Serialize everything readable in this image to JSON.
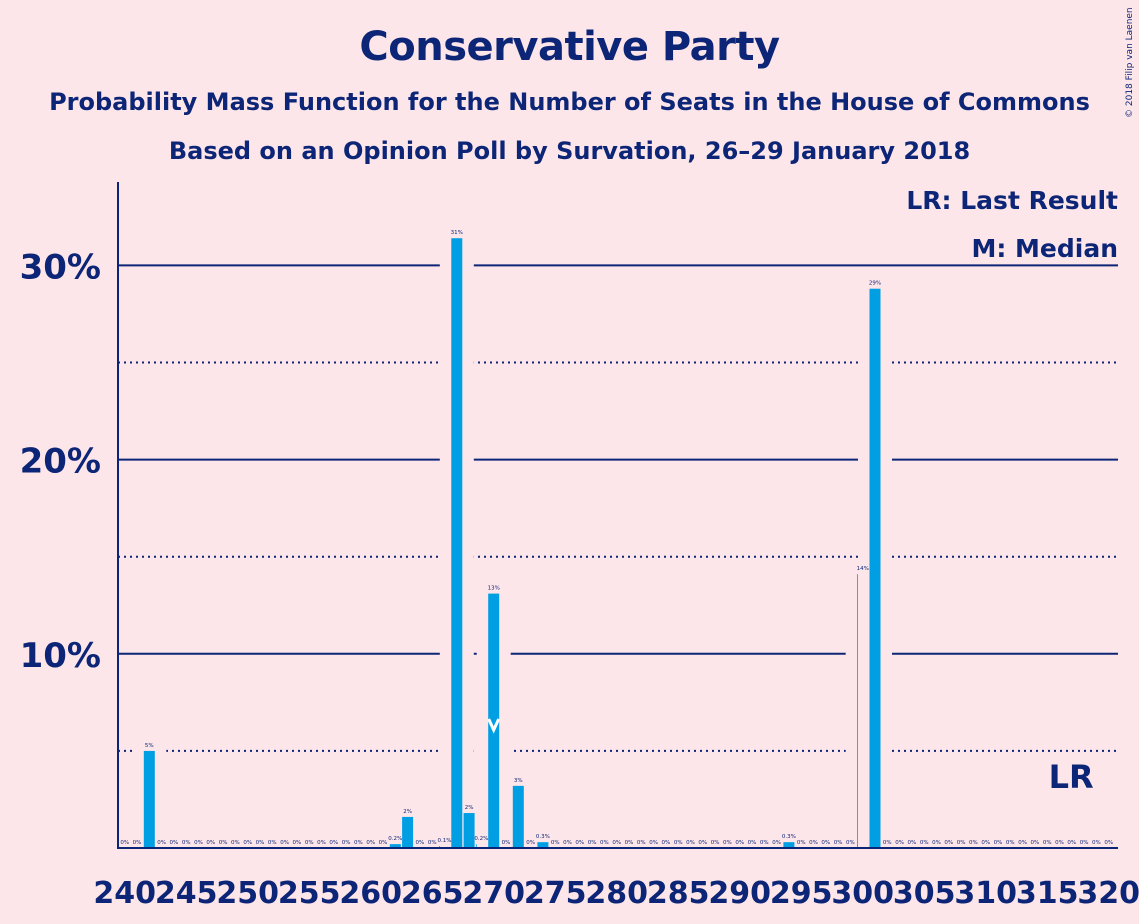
{
  "chart_data": {
    "type": "bar",
    "title": "Conservative Party",
    "subtitle": "Probability Mass Function for the Number of Seats in the House of Commons",
    "subtitle2": "Based on an Opinion Poll by Survation, 26–29 January 2018",
    "copyright": "© 2018 Filip van Laenen",
    "legend": {
      "last_result": "LR: Last Result",
      "median": "M: Median",
      "placement": "top-right"
    },
    "lr_label": "LR",
    "lr_seat": 318,
    "median_seat": 270,
    "color_bar": "#009fe3",
    "color_axis": "#0c2577",
    "ylim": [
      0,
      34
    ],
    "y_ticks": [
      10,
      20,
      30
    ],
    "y_tick_labels": [
      "10%",
      "20%",
      "30%"
    ],
    "y_dotted": [
      5,
      15,
      25
    ],
    "x_tick_values": [
      240,
      245,
      250,
      255,
      260,
      265,
      270,
      275,
      280,
      285,
      290,
      295,
      300,
      305,
      310,
      315,
      320
    ],
    "x_tick_labels": [
      "240",
      "245",
      "250",
      "255",
      "260",
      "265",
      "270",
      "275",
      "280",
      "285",
      "290",
      "295",
      "300",
      "305",
      "310",
      "315",
      "320"
    ],
    "x_range": [
      240,
      320
    ],
    "values": [
      {
        "x": 240,
        "v": 0,
        "label": "0%"
      },
      {
        "x": 241,
        "v": 0,
        "label": "0%"
      },
      {
        "x": 242,
        "v": 5,
        "label": "5%"
      },
      {
        "x": 243,
        "v": 0,
        "label": "0%"
      },
      {
        "x": 244,
        "v": 0,
        "label": "0%"
      },
      {
        "x": 245,
        "v": 0,
        "label": "0%"
      },
      {
        "x": 246,
        "v": 0,
        "label": "0%"
      },
      {
        "x": 247,
        "v": 0,
        "label": "0%"
      },
      {
        "x": 248,
        "v": 0,
        "label": "0%"
      },
      {
        "x": 249,
        "v": 0,
        "label": "0%"
      },
      {
        "x": 250,
        "v": 0,
        "label": "0%"
      },
      {
        "x": 251,
        "v": 0,
        "label": "0%"
      },
      {
        "x": 252,
        "v": 0,
        "label": "0%"
      },
      {
        "x": 253,
        "v": 0,
        "label": "0%"
      },
      {
        "x": 254,
        "v": 0,
        "label": "0%"
      },
      {
        "x": 255,
        "v": 0,
        "label": "0%"
      },
      {
        "x": 256,
        "v": 0,
        "label": "0%"
      },
      {
        "x": 257,
        "v": 0,
        "label": "0%"
      },
      {
        "x": 258,
        "v": 0,
        "label": "0%"
      },
      {
        "x": 259,
        "v": 0,
        "label": "0%"
      },
      {
        "x": 260,
        "v": 0,
        "label": "0%"
      },
      {
        "x": 261,
        "v": 0,
        "label": "0%"
      },
      {
        "x": 262,
        "v": 0.2,
        "label": "0.2%"
      },
      {
        "x": 263,
        "v": 1.6,
        "label": "2%"
      },
      {
        "x": 264,
        "v": 0,
        "label": "0%"
      },
      {
        "x": 265,
        "v": 0,
        "label": "0%"
      },
      {
        "x": 266,
        "v": 0.1,
        "label": "0.1%"
      },
      {
        "x": 267,
        "v": 31.4,
        "label": "31%"
      },
      {
        "x": 268,
        "v": 1.8,
        "label": "2%"
      },
      {
        "x": 269,
        "v": 0.2,
        "label": "0.2%"
      },
      {
        "x": 270,
        "v": 13.1,
        "label": "13%"
      },
      {
        "x": 271,
        "v": 0,
        "label": "0%"
      },
      {
        "x": 272,
        "v": 3.2,
        "label": "3%"
      },
      {
        "x": 273,
        "v": 0,
        "label": "0%"
      },
      {
        "x": 274,
        "v": 0.3,
        "label": "0.3%"
      },
      {
        "x": 275,
        "v": 0,
        "label": "0%"
      },
      {
        "x": 276,
        "v": 0,
        "label": "0%"
      },
      {
        "x": 277,
        "v": 0,
        "label": "0%"
      },
      {
        "x": 278,
        "v": 0,
        "label": "0%"
      },
      {
        "x": 279,
        "v": 0,
        "label": "0%"
      },
      {
        "x": 280,
        "v": 0,
        "label": "0%"
      },
      {
        "x": 281,
        "v": 0,
        "label": "0%"
      },
      {
        "x": 282,
        "v": 0,
        "label": "0%"
      },
      {
        "x": 283,
        "v": 0,
        "label": "0%"
      },
      {
        "x": 284,
        "v": 0,
        "label": "0%"
      },
      {
        "x": 285,
        "v": 0,
        "label": "0%"
      },
      {
        "x": 286,
        "v": 0,
        "label": "0%"
      },
      {
        "x": 287,
        "v": 0,
        "label": "0%"
      },
      {
        "x": 288,
        "v": 0,
        "label": "0%"
      },
      {
        "x": 289,
        "v": 0,
        "label": "0%"
      },
      {
        "x": 290,
        "v": 0,
        "label": "0%"
      },
      {
        "x": 291,
        "v": 0,
        "label": "0%"
      },
      {
        "x": 292,
        "v": 0,
        "label": "0%"
      },
      {
        "x": 293,
        "v": 0,
        "label": "0%"
      },
      {
        "x": 294,
        "v": 0.3,
        "label": "0.3%"
      },
      {
        "x": 295,
        "v": 0,
        "label": "0%"
      },
      {
        "x": 296,
        "v": 0,
        "label": "0%"
      },
      {
        "x": 297,
        "v": 0,
        "label": "0%"
      },
      {
        "x": 298,
        "v": 0,
        "label": "0%"
      },
      {
        "x": 299,
        "v": 0,
        "label": "0%"
      },
      {
        "x": 300,
        "v": 14.1,
        "label": "14%"
      },
      {
        "x": 301,
        "v": 28.8,
        "label": "29%"
      },
      {
        "x": 302,
        "v": 0,
        "label": "0%"
      },
      {
        "x": 303,
        "v": 0,
        "label": "0%"
      },
      {
        "x": 304,
        "v": 0,
        "label": "0%"
      },
      {
        "x": 305,
        "v": 0,
        "label": "0%"
      },
      {
        "x": 306,
        "v": 0,
        "label": "0%"
      },
      {
        "x": 307,
        "v": 0,
        "label": "0%"
      },
      {
        "x": 308,
        "v": 0,
        "label": "0%"
      },
      {
        "x": 309,
        "v": 0,
        "label": "0%"
      },
      {
        "x": 310,
        "v": 0,
        "label": "0%"
      },
      {
        "x": 311,
        "v": 0,
        "label": "0%"
      },
      {
        "x": 312,
        "v": 0,
        "label": "0%"
      },
      {
        "x": 313,
        "v": 0,
        "label": "0%"
      },
      {
        "x": 314,
        "v": 0,
        "label": "0%"
      },
      {
        "x": 315,
        "v": 0,
        "label": "0%"
      },
      {
        "x": 316,
        "v": 0,
        "label": "0%"
      },
      {
        "x": 317,
        "v": 0,
        "label": "0%"
      },
      {
        "x": 318,
        "v": 0,
        "label": "0%"
      },
      {
        "x": 319,
        "v": 0,
        "label": "0%"
      },
      {
        "x": 320,
        "v": 0,
        "label": "0%"
      }
    ]
  }
}
